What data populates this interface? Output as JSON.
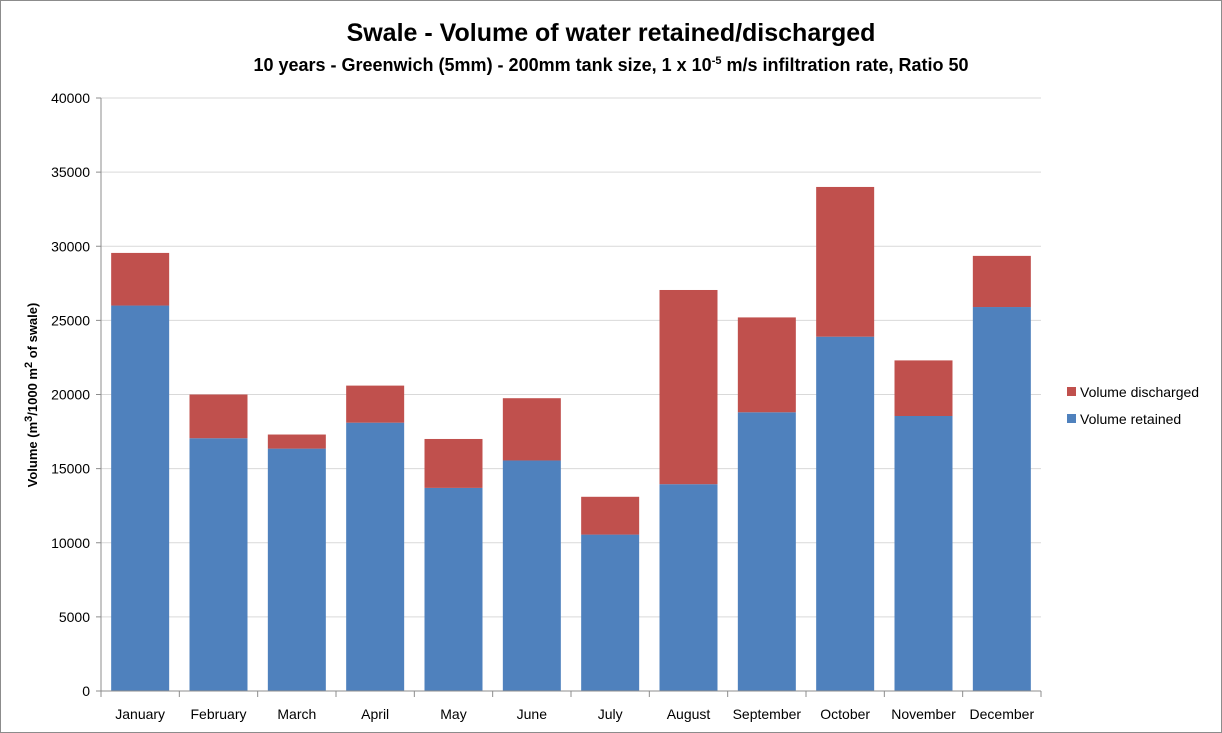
{
  "chart_data": {
    "type": "bar",
    "stacked": true,
    "title": "Swale - Volume of water retained/discharged",
    "subtitle": {
      "before": "10 years - Greenwich (5mm) - 200mm tank size, 1 x 10",
      "exponent": "-5",
      "after": " m/s infiltration rate, Ratio 50"
    },
    "ylabel": {
      "p1": "Volume (m",
      "s1": "3",
      "p2": "/1000 m",
      "s2": "2",
      "p3": " of swale)"
    },
    "ylim": [
      0,
      40000
    ],
    "yticks": [
      0,
      5000,
      10000,
      15000,
      20000,
      25000,
      30000,
      35000,
      40000
    ],
    "grid": true,
    "legend_position": "right",
    "categories": [
      "January",
      "February",
      "March",
      "April",
      "May",
      "June",
      "July",
      "August",
      "September",
      "October",
      "November",
      "December"
    ],
    "series": [
      {
        "name": "Volume retained",
        "color": "#4f81bd",
        "values": [
          26000,
          17050,
          16350,
          18100,
          13700,
          15550,
          10550,
          13950,
          18800,
          23900,
          18550,
          25900
        ]
      },
      {
        "name": "Volume discharged",
        "color": "#c0504d",
        "values": [
          3550,
          2950,
          950,
          2500,
          3300,
          4200,
          2550,
          13100,
          6400,
          10100,
          3750,
          3450
        ]
      }
    ]
  }
}
